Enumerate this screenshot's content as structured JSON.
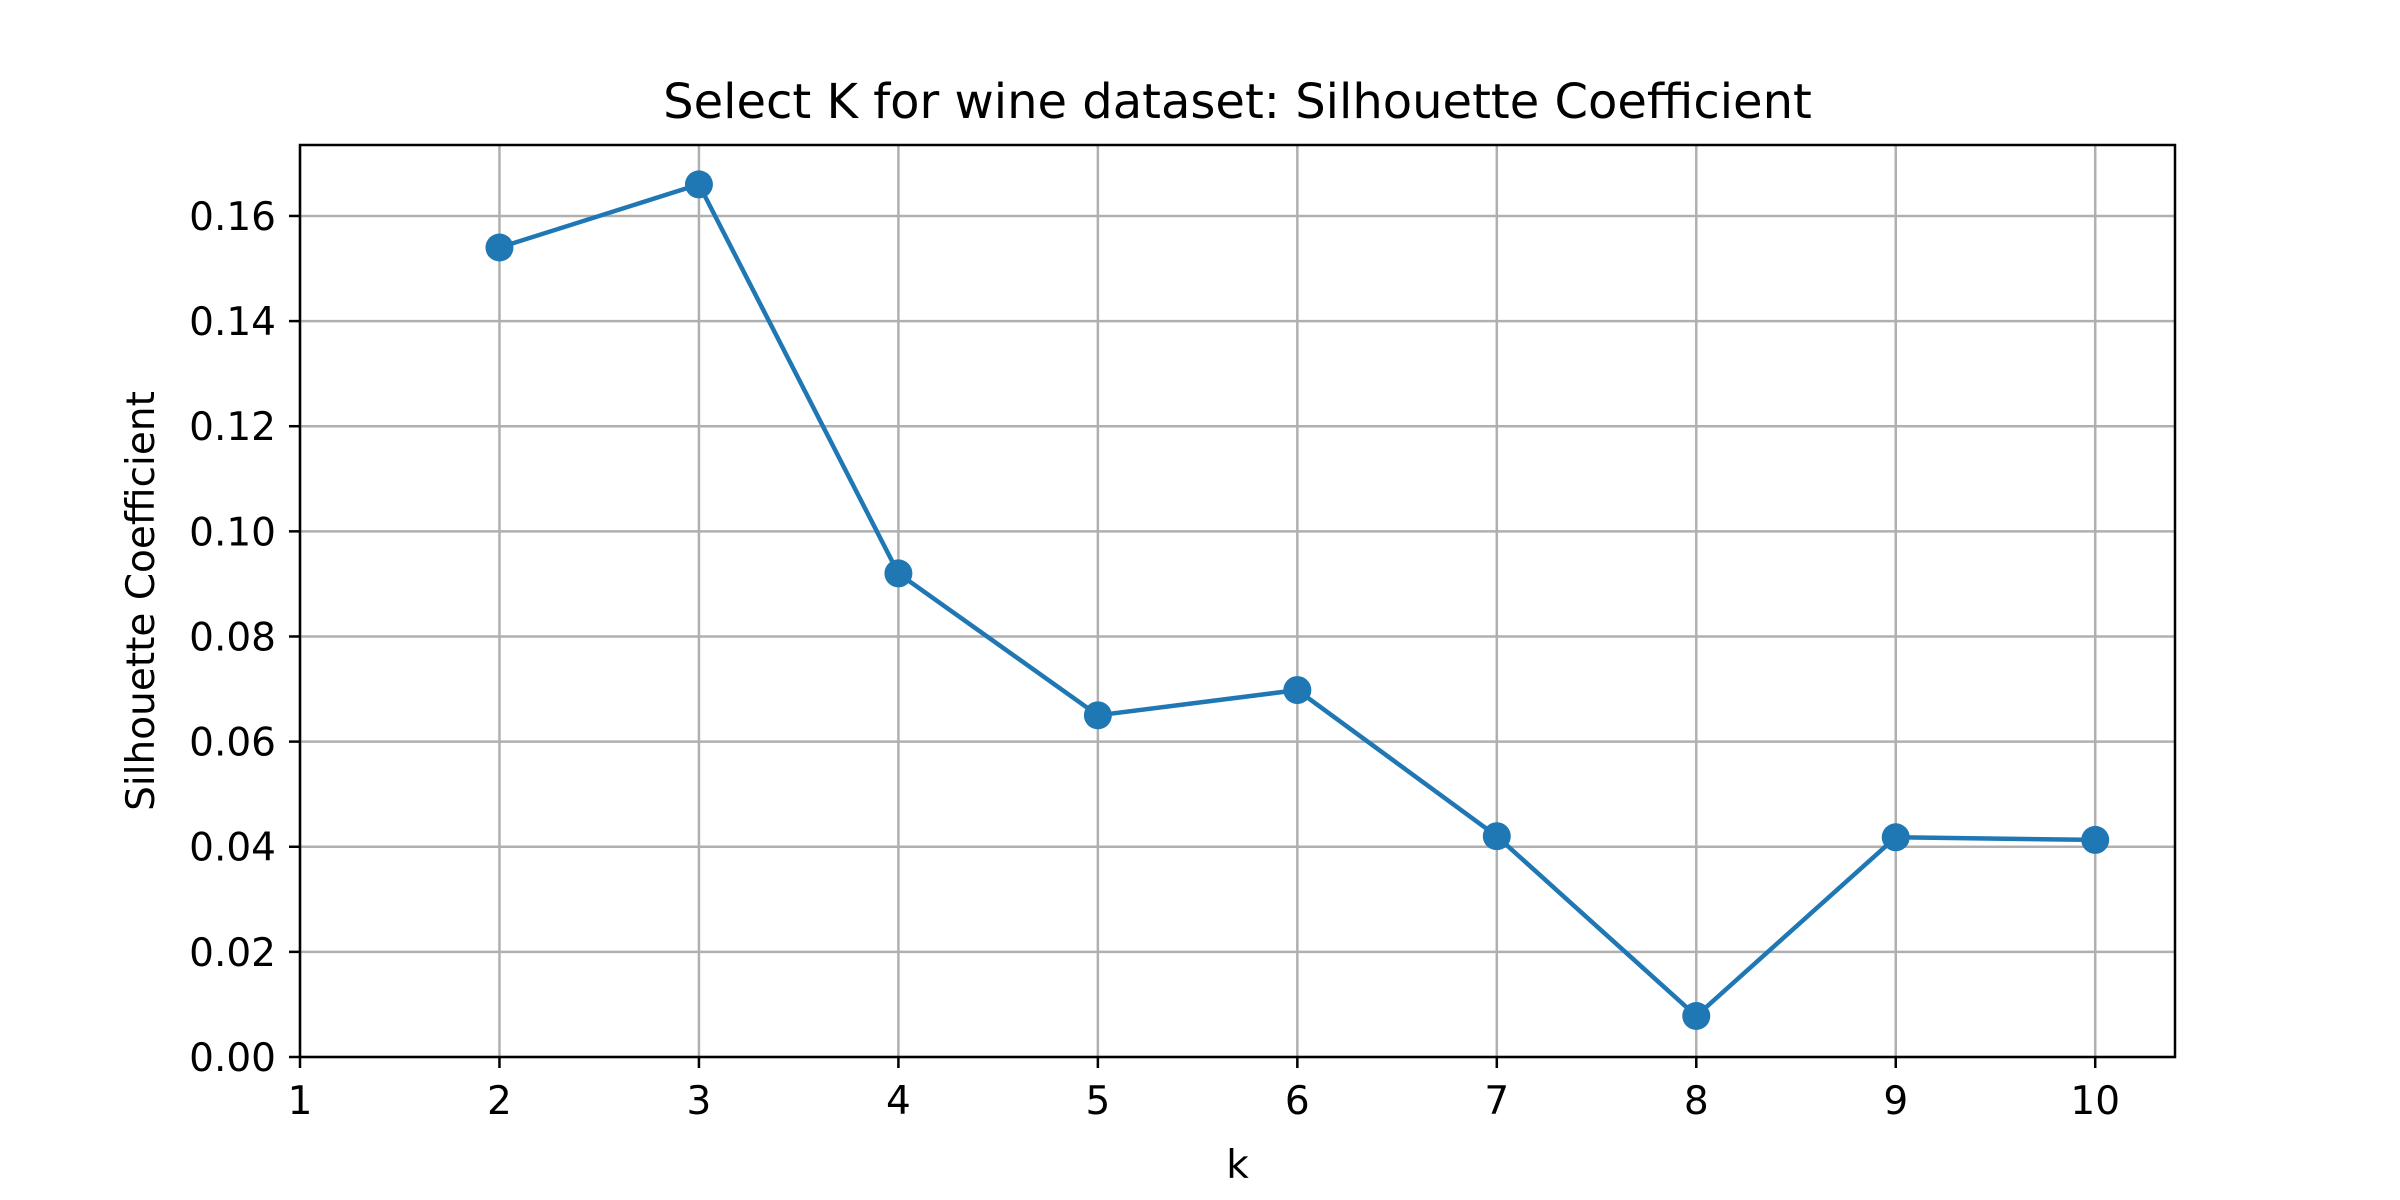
{
  "chart_data": {
    "type": "line",
    "title": "Select K for wine dataset: Silhouette Coefficient",
    "xlabel": "k",
    "ylabel": "Silhouette Coefficient",
    "xlim": [
      1,
      10.4
    ],
    "ylim": [
      0.0,
      0.1735
    ],
    "xticks": [
      1,
      2,
      3,
      4,
      5,
      6,
      7,
      8,
      9,
      10
    ],
    "xtick_labels": [
      "1",
      "2",
      "3",
      "4",
      "5",
      "6",
      "7",
      "8",
      "9",
      "10"
    ],
    "yticks": [
      0.0,
      0.02,
      0.04,
      0.06,
      0.08,
      0.1,
      0.12,
      0.14,
      0.16
    ],
    "ytick_labels": [
      "0.00",
      "0.02",
      "0.04",
      "0.06",
      "0.08",
      "0.10",
      "0.12",
      "0.14",
      "0.16"
    ],
    "grid": true,
    "series": [
      {
        "name": "Silhouette Coefficient",
        "color": "#1f77b4",
        "marker": "circle",
        "x": [
          2,
          3,
          4,
          5,
          6,
          7,
          8,
          9,
          10
        ],
        "y": [
          0.154,
          0.166,
          0.092,
          0.065,
          0.0698,
          0.042,
          0.0078,
          0.0418,
          0.0413
        ]
      }
    ]
  }
}
